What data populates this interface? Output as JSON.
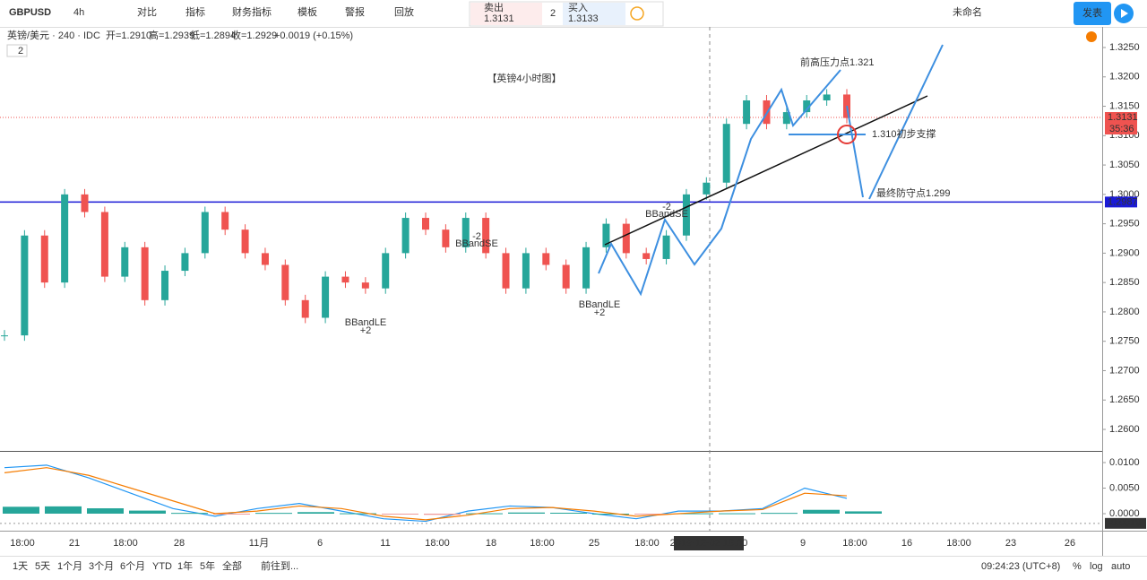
{
  "toolbar": {
    "symbol": "GBPUSD",
    "interval": "4h",
    "buttons": [
      "对比",
      "指标",
      "财务指标",
      "模板",
      "警报",
      "回放"
    ],
    "sell": {
      "label": "卖出",
      "price": "1.3131"
    },
    "spread": "2",
    "buy": {
      "label": "买入",
      "price": "1.3133"
    },
    "layout_name": "未命名",
    "publish": "发表"
  },
  "legend": {
    "symbol": "英镑/美元 · 240 · IDC",
    "open": "开=1.2910",
    "high": "高=1.2939",
    "low": "低=1.2894",
    "close": "收=1.2929",
    "change": "+0.0019 (+0.15%)",
    "studies": "2"
  },
  "annotations": {
    "title": "【英镑4小时图】",
    "resistance": "前高压力点1.321",
    "support": "1.310初步支撑",
    "defense": "最终防守点1.299"
  },
  "chart": {
    "closes": [
      1.276,
      1.293,
      1.285,
      1.3,
      1.297,
      1.286,
      1.291,
      1.282,
      1.287,
      1.29,
      1.297,
      1.294,
      1.29,
      1.288,
      1.282,
      1.279,
      1.286,
      1.285,
      1.284,
      1.29,
      1.296,
      1.294,
      1.291,
      1.296,
      1.29,
      1.284,
      1.29,
      1.288,
      1.284,
      1.291,
      1.295,
      1.29,
      1.289,
      1.293,
      1.3,
      1.302,
      1.312,
      1.316,
      1.312,
      1.314,
      1.316,
      1.317,
      1.313
    ],
    "price_ticks": [
      {
        "value": 1.325,
        "label": "1.3250"
      },
      {
        "value": 1.32,
        "label": "1.3200"
      },
      {
        "value": 1.315,
        "label": "1.3150"
      },
      {
        "value": 1.31,
        "label": "1.3100"
      },
      {
        "value": 1.305,
        "label": "1.3050"
      },
      {
        "value": 1.3,
        "label": "1.3000"
      },
      {
        "value": 1.295,
        "label": "1.2950"
      },
      {
        "value": 1.29,
        "label": "1.2900"
      },
      {
        "value": 1.285,
        "label": "1.2850"
      },
      {
        "value": 1.28,
        "label": "1.2800"
      },
      {
        "value": 1.275,
        "label": "1.2750"
      },
      {
        "value": 1.27,
        "label": "1.2700"
      },
      {
        "value": 1.265,
        "label": "1.2650"
      },
      {
        "value": 1.26,
        "label": "1.2600"
      }
    ],
    "last_price": {
      "value": 1.3131,
      "label": "1.3131"
    },
    "countdown": "35:36",
    "level": {
      "value": 1.2987,
      "label": "1.2987"
    },
    "markers": [
      "BBandLE",
      "+2",
      "BBandSE",
      "-2"
    ]
  },
  "macd": {
    "macd": [
      0.009,
      0.0095,
      0.007,
      0.004,
      0.001,
      -0.0005,
      0.001,
      0.002,
      0.0005,
      -0.001,
      -0.0015,
      0.0005,
      0.0015,
      0.0012,
      0.0,
      -0.001,
      0.0005,
      0.0005,
      0.001,
      0.005,
      0.003
    ],
    "signal": [
      0.008,
      0.009,
      0.0075,
      0.005,
      0.0025,
      0.0,
      0.0005,
      0.0015,
      0.001,
      -0.0005,
      -0.0012,
      -0.0003,
      0.001,
      0.0012,
      0.0005,
      -0.0005,
      0.0,
      0.0005,
      0.0008,
      0.004,
      0.0035
    ],
    "ticks": [
      {
        "value": 0.01,
        "label": "0.0100"
      },
      {
        "value": 0.005,
        "label": "0.0050"
      },
      {
        "value": 0,
        "label": "0.0000"
      }
    ],
    "last": {
      "value": -0.0019,
      "label": "-0.0019"
    }
  },
  "time_axis": [
    "18:00",
    "21",
    "18:00",
    "28",
    "11月",
    "6",
    "11",
    "18:00",
    "18",
    "18:00",
    "25",
    "18:00",
    "9",
    "18:00",
    "16",
    "18:00",
    "23",
    "26"
  ],
  "cursor_time": "2019-12-02   18:00",
  "bottom": {
    "ranges": [
      "1天",
      "5天",
      "1个月",
      "3个月",
      "6个月",
      "YTD",
      "1年",
      "5年",
      "全部"
    ],
    "goto": "前往到...",
    "clock": "09:24:23 (UTC+8)",
    "percent": "%",
    "log": "log",
    "auto": "auto"
  }
}
